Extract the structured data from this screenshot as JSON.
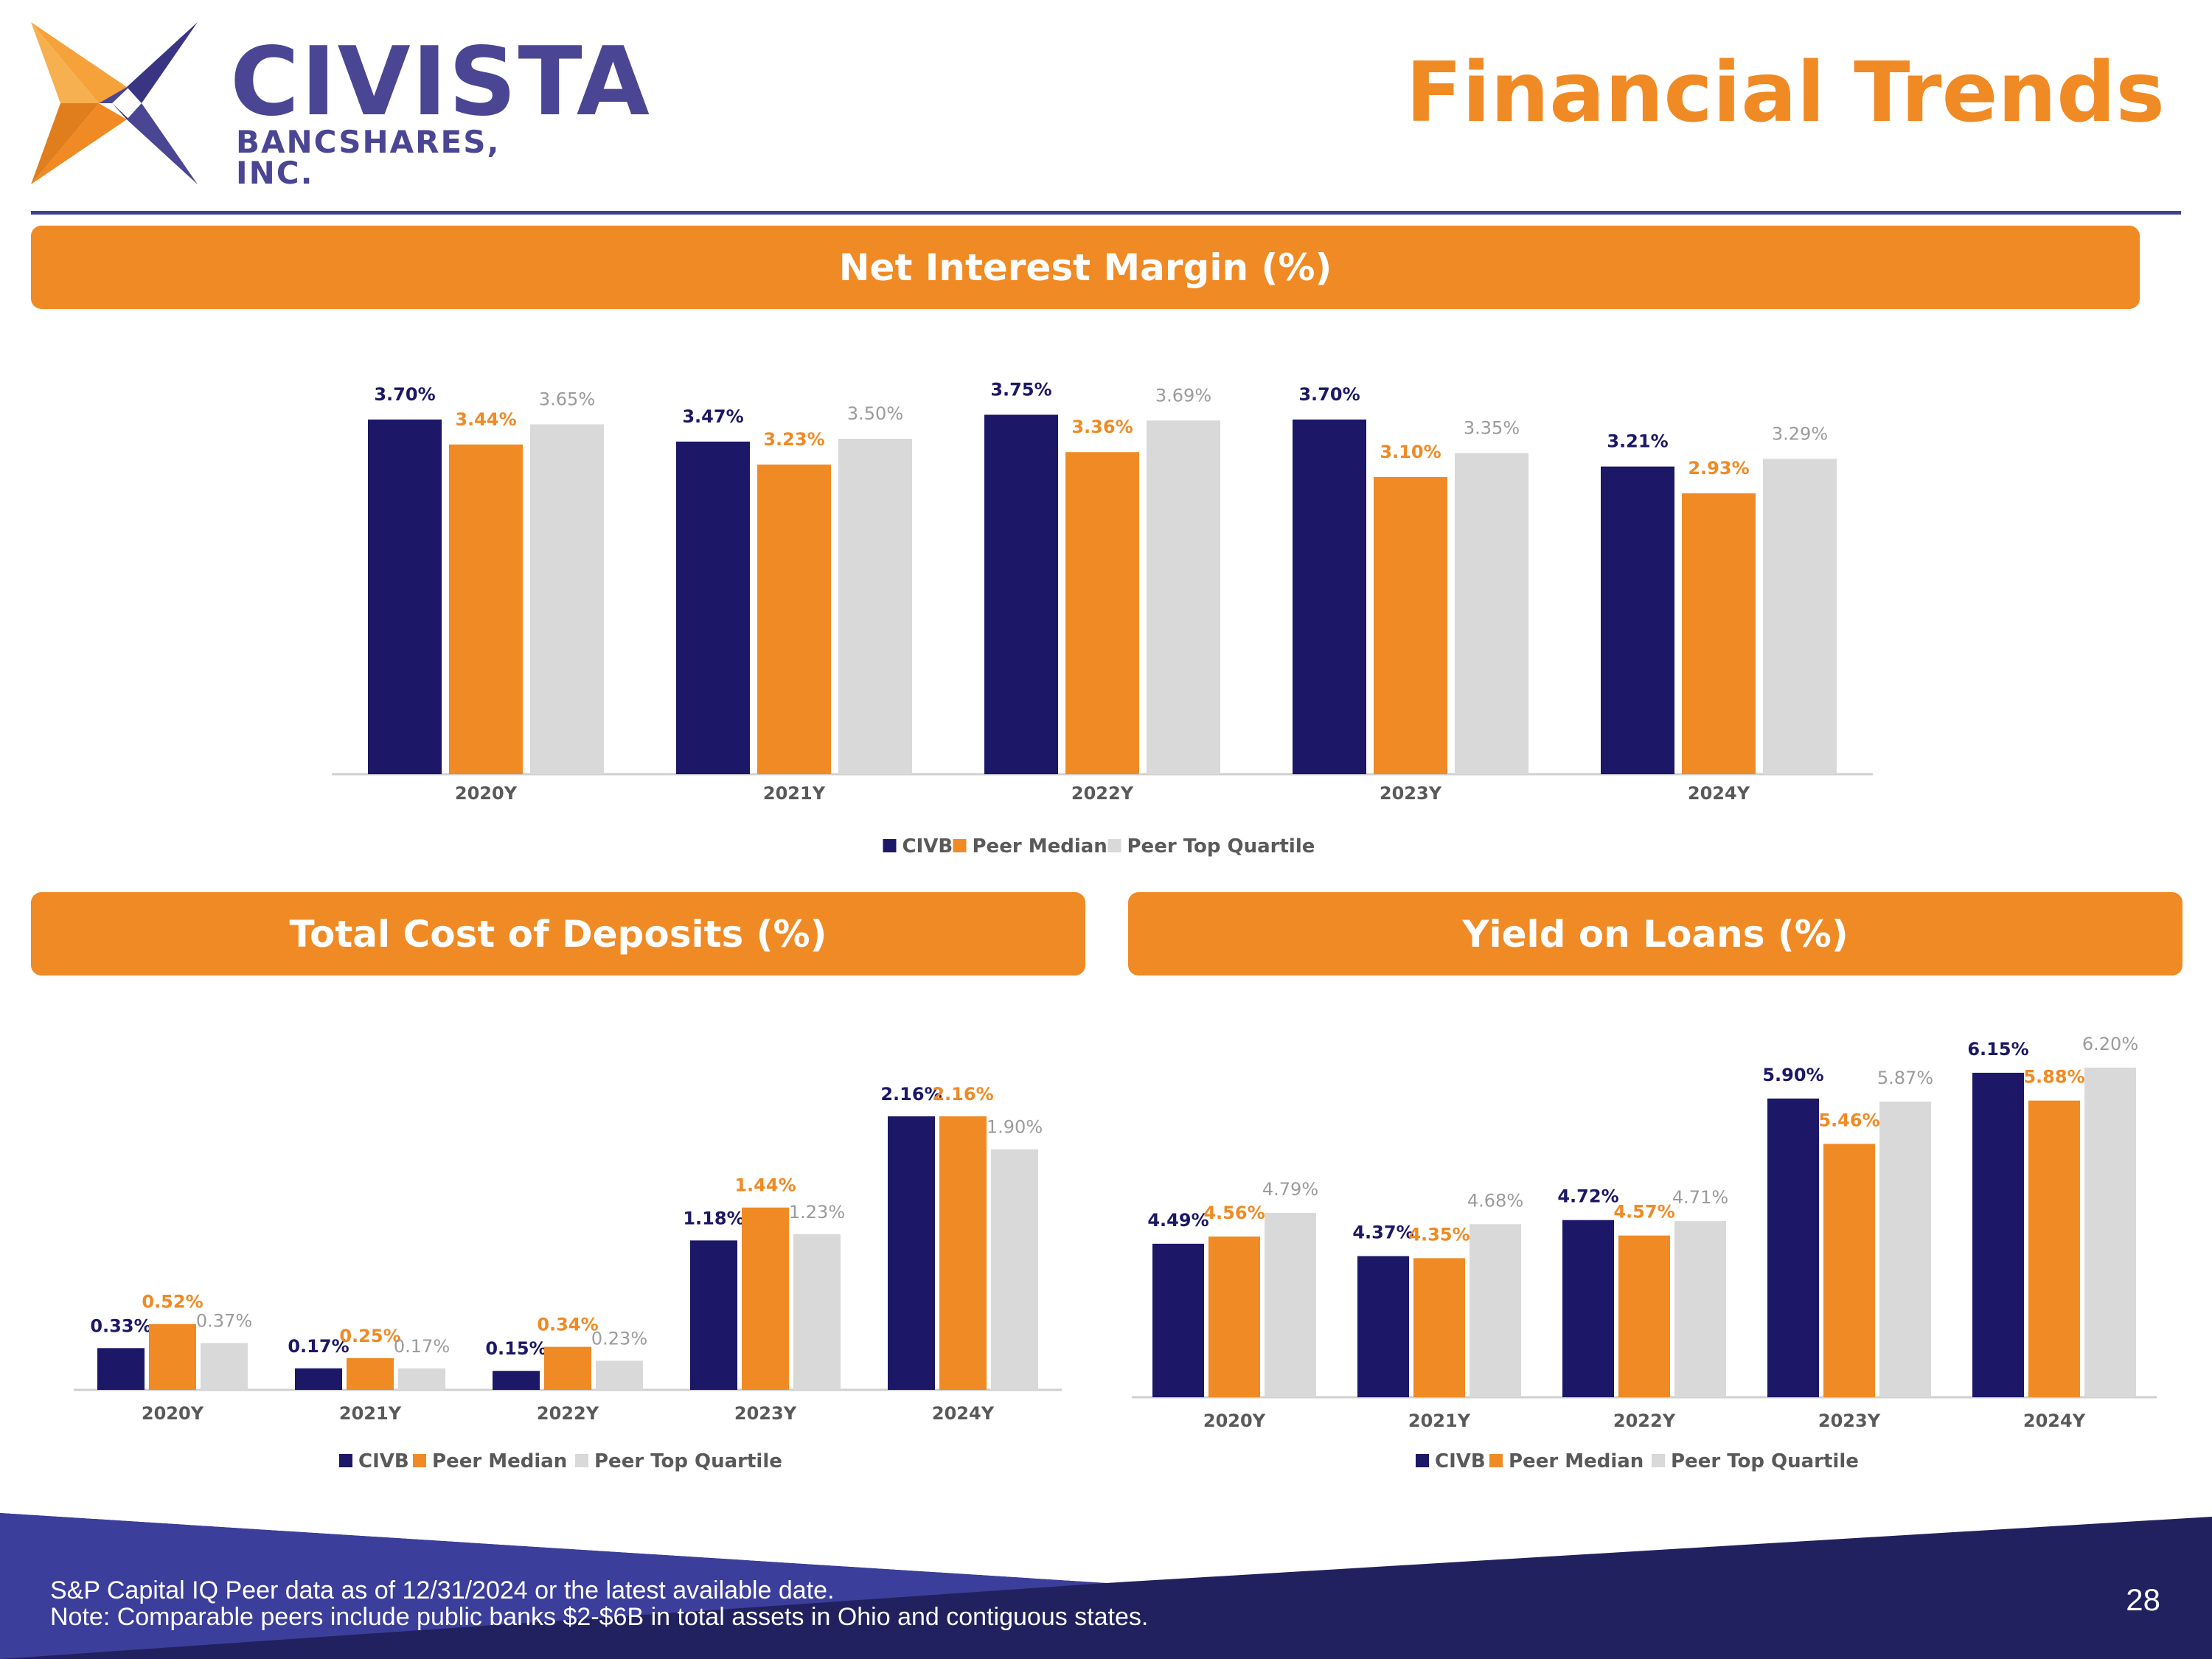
{
  "header": {
    "logo_name": "CIVISTA",
    "logo_subtitle": "BANCSHARES, INC.",
    "page_title": "Financial Trends"
  },
  "colors": {
    "civb": "#1c1766",
    "peer_median": "#f08a24",
    "peer_top_quartile": "#d9d9d9",
    "top_quartile_label": "#9b9b9b",
    "banner": "#f08a24",
    "footer": "#22215f"
  },
  "sections": {
    "nim_title": "Net Interest Margin (%)",
    "deposits_title": "Total Cost of Deposits (%)",
    "loans_title": "Yield on Loans (%)"
  },
  "chart_data": [
    {
      "id": "nim",
      "type": "bar",
      "title": "Net Interest Margin (%)",
      "categories": [
        "2020Y",
        "2021Y",
        "2022Y",
        "2023Y",
        "2024Y"
      ],
      "series": [
        {
          "name": "CIVB",
          "values": [
            3.7,
            3.47,
            3.75,
            3.7,
            3.21
          ],
          "labels": [
            "3.70%",
            "3.47%",
            "3.75%",
            "3.70%",
            "3.21%"
          ]
        },
        {
          "name": "Peer Median",
          "values": [
            3.44,
            3.23,
            3.36,
            3.1,
            2.93
          ],
          "labels": [
            "3.44%",
            "3.23%",
            "3.36%",
            "3.10%",
            "2.93%"
          ]
        },
        {
          "name": "Peer Top Quartile",
          "values": [
            3.65,
            3.5,
            3.69,
            3.35,
            3.29
          ],
          "labels": [
            "3.65%",
            "3.50%",
            "3.69%",
            "3.35%",
            "3.29%"
          ]
        }
      ],
      "ylim": [
        0,
        4.0
      ],
      "legend": "bottom"
    },
    {
      "id": "deposits",
      "type": "bar",
      "title": "Total Cost of Deposits (%)",
      "categories": [
        "2020Y",
        "2021Y",
        "2022Y",
        "2023Y",
        "2024Y"
      ],
      "series": [
        {
          "name": "CIVB",
          "values": [
            0.33,
            0.17,
            0.15,
            1.18,
            2.16
          ],
          "labels": [
            "0.33%",
            "0.17%",
            "0.15%",
            "1.18%",
            "2.16%"
          ]
        },
        {
          "name": "Peer Median",
          "values": [
            0.52,
            0.25,
            0.34,
            1.44,
            2.16
          ],
          "labels": [
            "0.52%",
            "0.25%",
            "0.34%",
            "1.44%",
            "2.16%"
          ]
        },
        {
          "name": "Peer Top Quartile",
          "values": [
            0.37,
            0.17,
            0.23,
            1.23,
            1.9
          ],
          "labels": [
            "0.37%",
            "0.17%",
            "0.23%",
            "1.23%",
            "1.90%"
          ]
        }
      ],
      "ylim": [
        0,
        2.3
      ],
      "legend": "bottom"
    },
    {
      "id": "loans",
      "type": "bar",
      "title": "Yield on Loans (%)",
      "categories": [
        "2020Y",
        "2021Y",
        "2022Y",
        "2023Y",
        "2024Y"
      ],
      "series": [
        {
          "name": "CIVB",
          "values": [
            4.49,
            4.37,
            4.72,
            5.9,
            6.15
          ],
          "labels": [
            "4.49%",
            "4.37%",
            "4.72%",
            "5.90%",
            "6.15%"
          ]
        },
        {
          "name": "Peer Median",
          "values": [
            4.56,
            4.35,
            4.57,
            5.46,
            5.88
          ],
          "labels": [
            "4.56%",
            "4.35%",
            "4.57%",
            "5.46%",
            "5.88%"
          ]
        },
        {
          "name": "Peer Top Quartile",
          "values": [
            4.79,
            4.68,
            4.71,
            5.87,
            6.2
          ],
          "labels": [
            "4.79%",
            "4.68%",
            "4.71%",
            "5.87%",
            "6.20%"
          ]
        }
      ],
      "ylim": [
        3.0,
        6.4
      ],
      "legend": "bottom"
    }
  ],
  "footer": {
    "note_line1": "S&P Capital IQ Peer data as of 12/31/2024 or the latest available date.",
    "note_line2": "Note: Comparable peers include public banks $2-$6B in total assets in Ohio and contiguous states.",
    "page_number": "28"
  }
}
